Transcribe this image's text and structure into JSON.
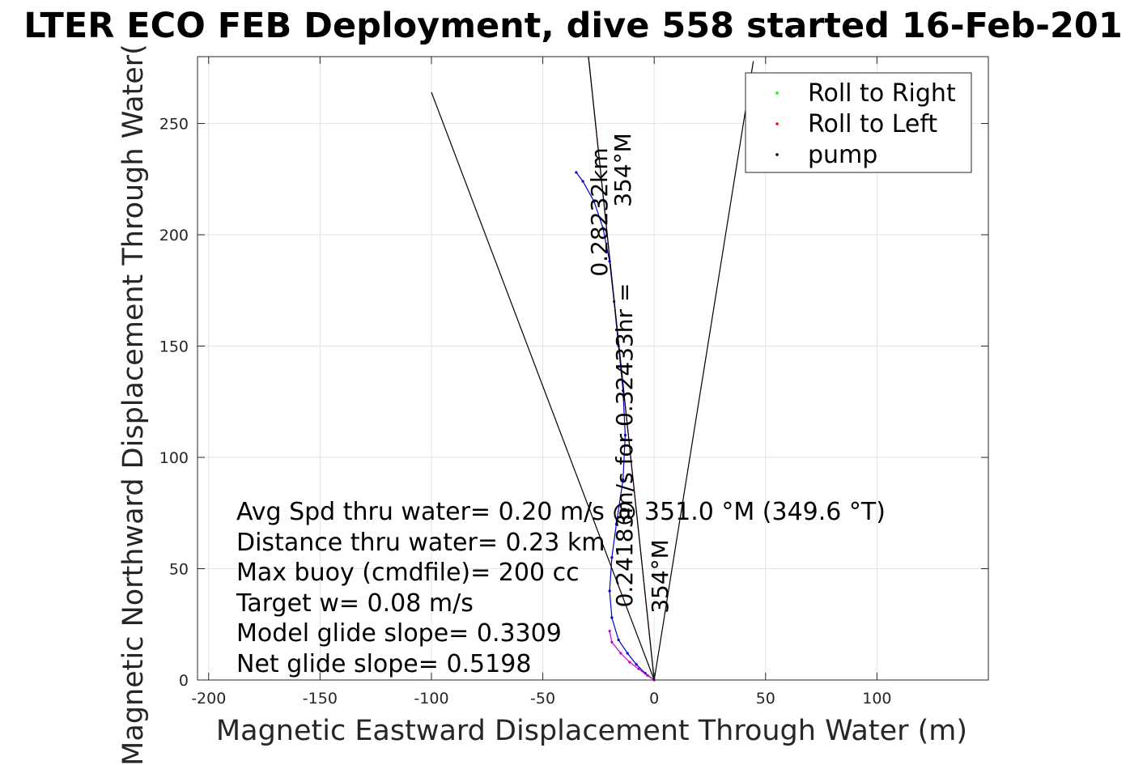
{
  "chart_data": {
    "type": "line",
    "title": "LTER ECO FEB Deployment, dive 558 started 16-Feb-201",
    "xlabel": "Magnetic Eastward Displacement Through Water (m)",
    "ylabel": "Magnetic Northward Displacement Through Water(",
    "xlim": [
      -205,
      150
    ],
    "ylim": [
      0,
      280
    ],
    "xticks": [
      -200,
      -150,
      -100,
      -50,
      0,
      50,
      100
    ],
    "xtick_labels": [
      "-200",
      "-150",
      "-100",
      "-50",
      "0",
      "50",
      "100"
    ],
    "yticks": [
      0,
      50,
      100,
      150,
      200,
      250
    ],
    "ytick_labels": [
      "0",
      "50",
      "100",
      "150",
      "200",
      "250"
    ],
    "grid": true,
    "legend_position": "top-right",
    "legend": [
      {
        "label": "Roll to Right",
        "color": "#00ff00"
      },
      {
        "label": "Roll to Left",
        "color": "#ff0000"
      },
      {
        "label": "pump",
        "color": "#000000"
      }
    ],
    "stats_lines": [
      "Avg Spd thru water=  0.20 m/s @ 351.0 °M (349.6 °T)",
      "Distance thru water=  0.23 km",
      "Max buoy (cmdfile)= 200 cc",
      "Target w= 0.08 m/s",
      "Model glide slope= 0.3309",
      "Net glide slope= 0.5198"
    ],
    "heading_labels": {
      "upper_line1": "0.28232km",
      "upper_line2": "354°M",
      "lower_line1": "0.24183m/s for 0.32433hr =",
      "lower_line2": "354°M"
    },
    "series": [
      {
        "color": "#0000cc",
        "x": [
          0,
          -4,
          -8,
          -12,
          -16,
          -19,
          -20,
          -19,
          -17,
          -14,
          -13,
          -14,
          -16,
          -18,
          -20,
          -23,
          -27,
          -32,
          -35
        ],
        "y": [
          0,
          3,
          7,
          12,
          18,
          28,
          40,
          55,
          70,
          90,
          110,
          130,
          150,
          170,
          188,
          203,
          215,
          224,
          228
        ]
      },
      {
        "color": "#cc00cc",
        "x": [
          0,
          -3,
          -7,
          -11,
          -15,
          -19,
          -20
        ],
        "y": [
          0,
          2,
          5,
          8,
          12,
          17,
          22
        ]
      },
      {
        "color": "#cc00cc",
        "x": [
          0,
          -29.5
        ],
        "y": [
          0,
          280
        ]
      },
      {
        "color": "#000000",
        "x": [
          0,
          -100
        ],
        "y": [
          0,
          264
        ]
      },
      {
        "color": "#000000",
        "x": [
          0,
          44.5
        ],
        "y": [
          0,
          278
        ]
      },
      {
        "color": "#000000",
        "x": [
          0,
          -29.5
        ],
        "y": [
          0,
          280
        ]
      }
    ]
  }
}
